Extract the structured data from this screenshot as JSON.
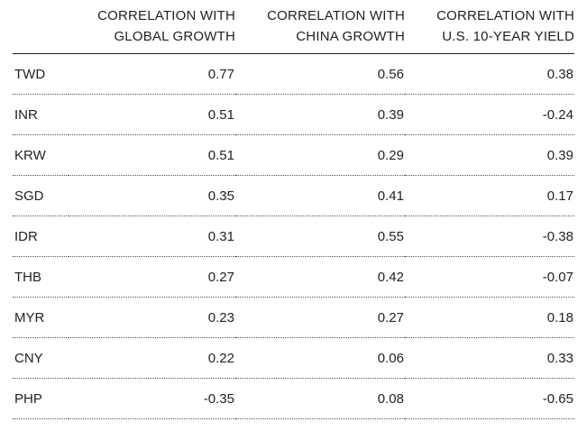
{
  "chart_data": {
    "type": "table",
    "columns": [
      {
        "line1": "",
        "line2": ""
      },
      {
        "line1": "CORRELATION WITH",
        "line2": "GLOBAL GROWTH"
      },
      {
        "line1": "CORRELATION WITH",
        "line2": "CHINA GROWTH"
      },
      {
        "line1": "CORRELATION WITH",
        "line2": "U.S. 10-YEAR YIELD"
      }
    ],
    "rows": [
      {
        "currency": "TWD",
        "global_growth": "0.77",
        "china_growth": "0.56",
        "us_10y_yield": "0.38"
      },
      {
        "currency": "INR",
        "global_growth": "0.51",
        "china_growth": "0.39",
        "us_10y_yield": "-0.24"
      },
      {
        "currency": "KRW",
        "global_growth": "0.51",
        "china_growth": "0.29",
        "us_10y_yield": "0.39"
      },
      {
        "currency": "SGD",
        "global_growth": "0.35",
        "china_growth": "0.41",
        "us_10y_yield": "0.17"
      },
      {
        "currency": "IDR",
        "global_growth": "0.31",
        "china_growth": "0.55",
        "us_10y_yield": "-0.38"
      },
      {
        "currency": "THB",
        "global_growth": "0.27",
        "china_growth": "0.42",
        "us_10y_yield": "-0.07"
      },
      {
        "currency": "MYR",
        "global_growth": "0.23",
        "china_growth": "0.27",
        "us_10y_yield": "0.18"
      },
      {
        "currency": "CNY",
        "global_growth": "0.22",
        "china_growth": "0.06",
        "us_10y_yield": "0.33"
      },
      {
        "currency": "PHP",
        "global_growth": "-0.35",
        "china_growth": "0.08",
        "us_10y_yield": "-0.65"
      }
    ]
  },
  "colors": {
    "text": "#222222",
    "rule": "#222222",
    "dotted_rule": "#555555",
    "background": "#ffffff"
  }
}
